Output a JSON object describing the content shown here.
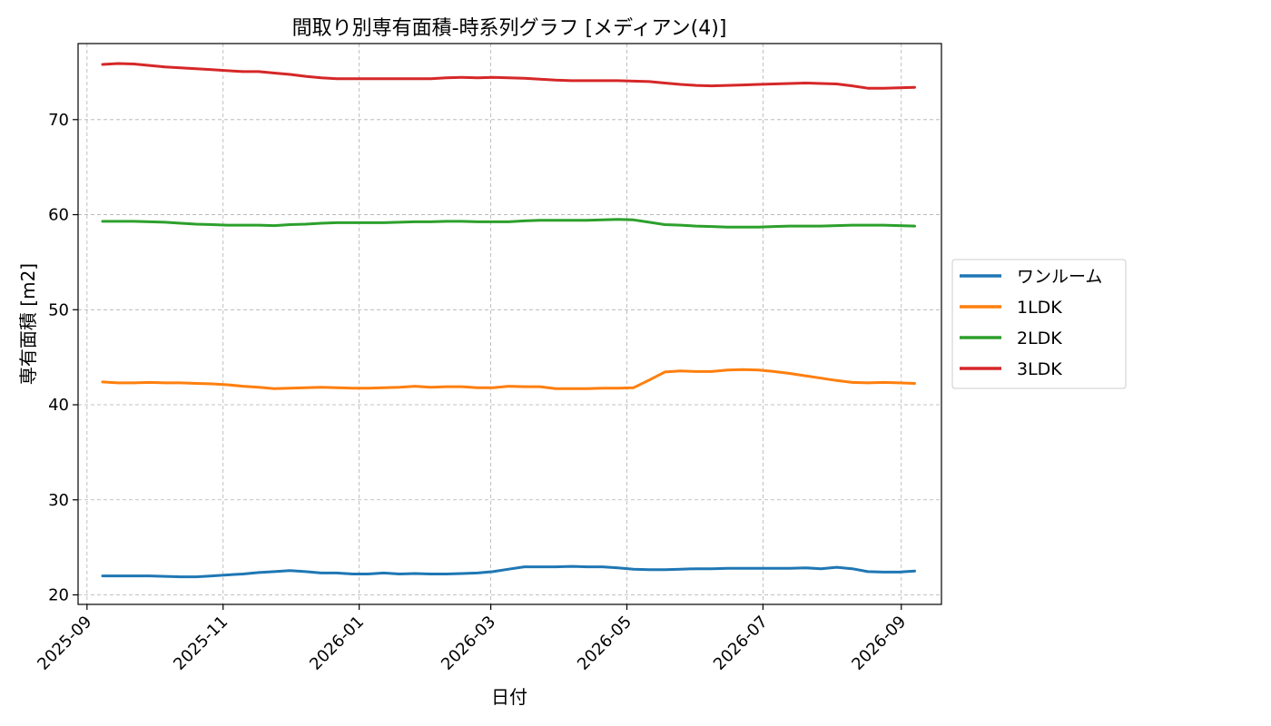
{
  "chart_data": {
    "type": "line",
    "title": "間取り別専有面積-時系列グラフ [メディアン(4)]",
    "xlabel": "日付",
    "ylabel": "専有面積 [m2]",
    "xlim": [
      "2025-08-28",
      "2026-09-19"
    ],
    "ylim": [
      19,
      78
    ],
    "grid": true,
    "legend_position": "right-outside",
    "x_ticks": [
      "2025-09-01",
      "2025-11-01",
      "2026-01-01",
      "2026-03-01",
      "2026-05-01",
      "2026-07-01",
      "2026-09-01"
    ],
    "x_tick_labels": [
      "2025-09",
      "2025-11",
      "2026-01",
      "2026-03",
      "2026-05",
      "2026-07",
      "2026-09"
    ],
    "y_ticks": [
      20,
      30,
      40,
      50,
      60,
      70
    ],
    "y_tick_labels": [
      "20",
      "30",
      "40",
      "50",
      "60",
      "70"
    ],
    "x": [
      "2025-09-08",
      "2025-09-15",
      "2025-09-22",
      "2025-09-29",
      "2025-10-06",
      "2025-10-13",
      "2025-10-20",
      "2025-10-27",
      "2025-11-03",
      "2025-11-10",
      "2025-11-17",
      "2025-11-24",
      "2025-12-01",
      "2025-12-08",
      "2025-12-15",
      "2025-12-22",
      "2025-12-29",
      "2026-01-05",
      "2026-01-12",
      "2026-01-19",
      "2026-01-26",
      "2026-02-02",
      "2026-02-09",
      "2026-02-16",
      "2026-02-23",
      "2026-03-02",
      "2026-03-09",
      "2026-03-16",
      "2026-03-23",
      "2026-03-30",
      "2026-04-06",
      "2026-04-13",
      "2026-04-20",
      "2026-04-27",
      "2026-05-04",
      "2026-05-11",
      "2026-05-18",
      "2026-05-25",
      "2026-06-01",
      "2026-06-08",
      "2026-06-15",
      "2026-06-22",
      "2026-06-29",
      "2026-07-06",
      "2026-07-13",
      "2026-07-20",
      "2026-07-27",
      "2026-08-03",
      "2026-08-10",
      "2026-08-17",
      "2026-08-24",
      "2026-08-31",
      "2026-09-07"
    ],
    "series": [
      {
        "name": "ワンルーム",
        "color": "#1f77b4",
        "values": [
          22.0,
          22.0,
          22.0,
          22.0,
          21.95,
          21.9,
          21.9,
          22.0,
          22.1,
          22.2,
          22.35,
          22.45,
          22.55,
          22.45,
          22.3,
          22.3,
          22.2,
          22.2,
          22.3,
          22.2,
          22.25,
          22.2,
          22.2,
          22.25,
          22.3,
          22.45,
          22.7,
          22.95,
          22.95,
          22.95,
          23.0,
          22.95,
          22.95,
          22.85,
          22.7,
          22.65,
          22.65,
          22.7,
          22.75,
          22.75,
          22.8,
          22.8,
          22.8,
          22.8,
          22.8,
          22.85,
          22.75,
          22.9,
          22.75,
          22.45,
          22.4,
          22.4,
          22.5
        ]
      },
      {
        "name": "1LDK",
        "color": "#ff7f0e",
        "values": [
          42.4,
          42.3,
          42.3,
          42.35,
          42.3,
          42.3,
          42.25,
          42.2,
          42.1,
          41.95,
          41.85,
          41.7,
          41.75,
          41.8,
          41.85,
          41.8,
          41.75,
          41.75,
          41.8,
          41.85,
          41.95,
          41.85,
          41.9,
          41.9,
          41.8,
          41.8,
          41.95,
          41.9,
          41.9,
          41.7,
          41.7,
          41.7,
          41.75,
          41.75,
          41.8,
          42.6,
          43.45,
          43.55,
          43.5,
          43.5,
          43.65,
          43.7,
          43.65,
          43.5,
          43.3,
          43.05,
          42.8,
          42.55,
          42.35,
          42.3,
          42.35,
          42.3,
          42.25
        ]
      },
      {
        "name": "2LDK",
        "color": "#2ca02c",
        "values": [
          59.3,
          59.3,
          59.3,
          59.25,
          59.2,
          59.1,
          59.0,
          58.95,
          58.9,
          58.9,
          58.9,
          58.85,
          58.95,
          59.0,
          59.1,
          59.15,
          59.15,
          59.15,
          59.15,
          59.2,
          59.25,
          59.25,
          59.3,
          59.3,
          59.25,
          59.25,
          59.25,
          59.35,
          59.4,
          59.4,
          59.4,
          59.4,
          59.45,
          59.5,
          59.45,
          59.2,
          58.95,
          58.9,
          58.8,
          58.75,
          58.7,
          58.7,
          58.7,
          58.75,
          58.8,
          58.8,
          58.8,
          58.85,
          58.9,
          58.9,
          58.9,
          58.85,
          58.8
        ]
      },
      {
        "name": "3LDK",
        "color": "#d62728",
        "values": [
          75.8,
          75.9,
          75.85,
          75.7,
          75.55,
          75.45,
          75.35,
          75.25,
          75.15,
          75.05,
          75.05,
          74.9,
          74.75,
          74.55,
          74.4,
          74.3,
          74.3,
          74.3,
          74.3,
          74.3,
          74.3,
          74.3,
          74.4,
          74.45,
          74.4,
          74.45,
          74.4,
          74.35,
          74.25,
          74.15,
          74.1,
          74.1,
          74.1,
          74.1,
          74.05,
          74.0,
          73.85,
          73.7,
          73.6,
          73.55,
          73.6,
          73.65,
          73.7,
          73.75,
          73.8,
          73.85,
          73.8,
          73.75,
          73.55,
          73.3,
          73.3,
          73.35,
          73.4
        ]
      }
    ]
  }
}
